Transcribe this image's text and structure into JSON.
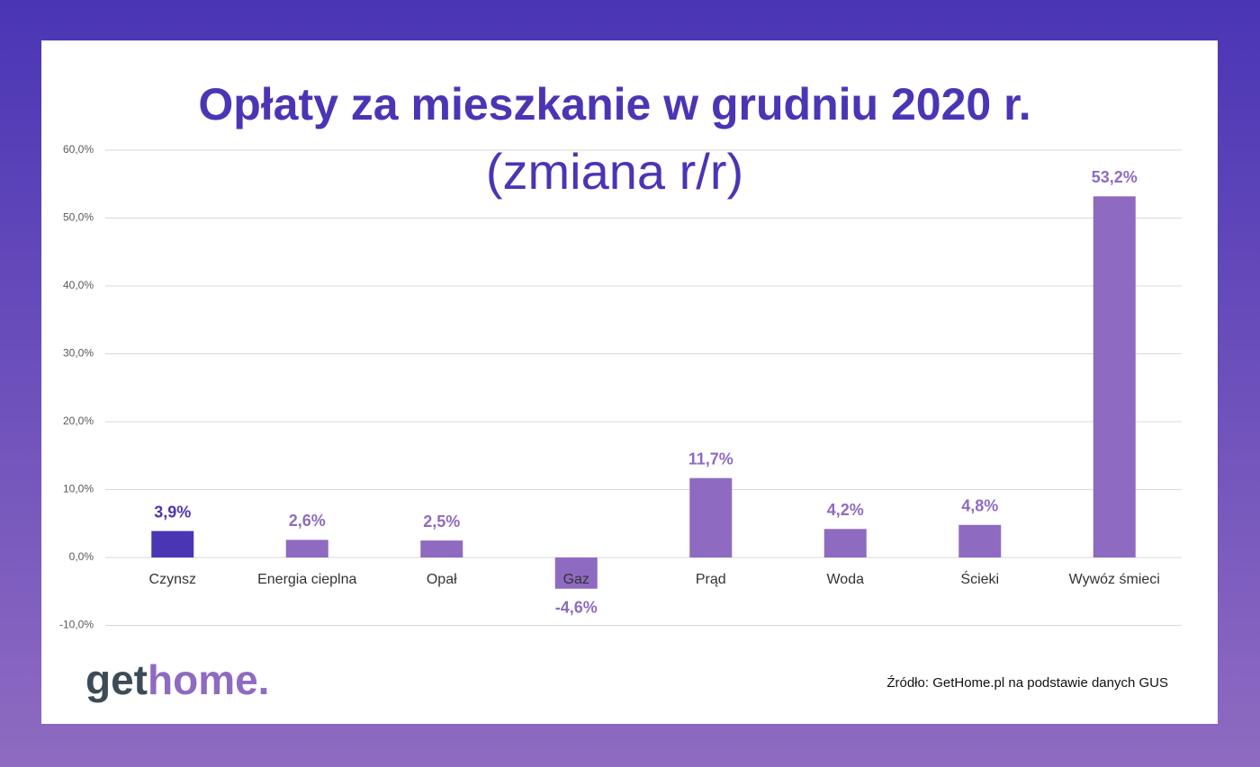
{
  "chart_data": {
    "type": "bar",
    "title": "Opłaty za mieszkanie w grudniu 2020 r.",
    "subtitle": "(zmiana r/r)",
    "categories": [
      "Czynsz",
      "Energia cieplna",
      "Opał",
      "Gaz",
      "Prąd",
      "Woda",
      "Ścieki",
      "Wywóz śmieci"
    ],
    "values": [
      3.9,
      2.6,
      2.5,
      -4.6,
      11.7,
      4.2,
      4.8,
      53.2
    ],
    "value_labels": [
      "3,9%",
      "2,6%",
      "2,5%",
      "-4,6%",
      "11,7%",
      "4,2%",
      "4,8%",
      "53,2%"
    ],
    "colors": [
      "#4a35b5",
      "#8e6bc0",
      "#8e6bc0",
      "#8e6bc0",
      "#8e6bc0",
      "#8e6bc0",
      "#8e6bc0",
      "#8e6bc0"
    ],
    "ylim": [
      -10,
      60
    ],
    "yticks": [
      {
        "value": -10,
        "label": "-10,0%"
      },
      {
        "value": 0,
        "label": "0,0%"
      },
      {
        "value": 10,
        "label": "10,0%"
      },
      {
        "value": 20,
        "label": "20,0%"
      },
      {
        "value": 30,
        "label": "30,0%"
      },
      {
        "value": 40,
        "label": "40,0%"
      },
      {
        "value": 50,
        "label": "50,0%"
      },
      {
        "value": 60,
        "label": "60,0%"
      }
    ],
    "grid": true
  },
  "logo": [
    "get",
    "home."
  ],
  "source": "Źródło: GetHome.pl na podstawie danych GUS"
}
